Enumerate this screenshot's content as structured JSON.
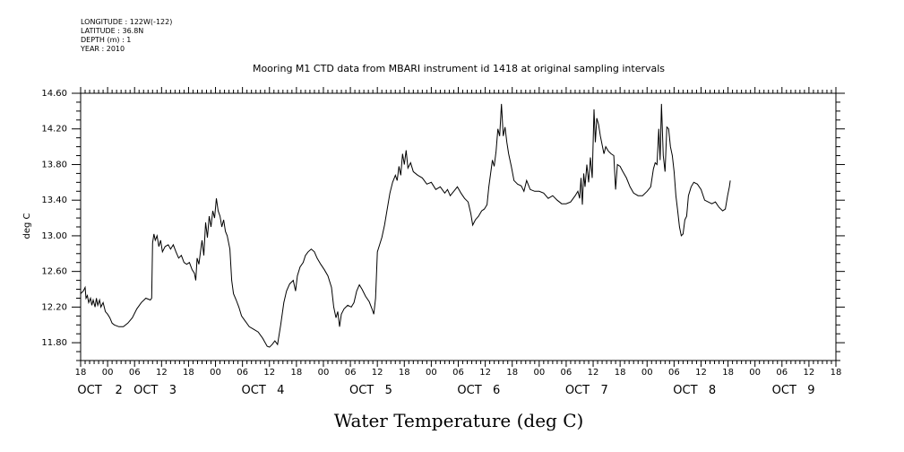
{
  "header": {
    "lines": [
      "LONGITUDE : 122W(-122)",
      "LATITUDE : 36.8N",
      "DEPTH (m) : 1",
      "YEAR : 2010"
    ]
  },
  "chart_data": {
    "type": "line",
    "title": "Mooring M1 CTD data from MBARI instrument id 1418 at original sampling intervals",
    "xlabel": "Water Temperature (deg C)",
    "ylabel": "deg C",
    "xlim": [
      -6,
      162
    ],
    "ylim": [
      11.6,
      14.6
    ],
    "yticks": [
      11.8,
      12.2,
      12.6,
      13.0,
      13.4,
      13.8,
      14.2,
      14.6
    ],
    "ytick_labels": [
      "11.80",
      "12.20",
      "12.60",
      "13.00",
      "13.40",
      "13.80",
      "14.20",
      "14.60"
    ],
    "x_hour_ticks": [
      -6,
      0,
      6,
      12,
      18,
      24,
      30,
      36,
      42,
      48,
      54,
      60,
      66,
      72,
      78,
      84,
      90,
      96,
      102,
      108,
      114,
      120,
      126,
      132,
      138,
      144,
      150,
      156,
      162
    ],
    "x_hour_labels": [
      "18",
      "00",
      "06",
      "12",
      "18",
      "00",
      "06",
      "12",
      "18",
      "00",
      "06",
      "12",
      "18",
      "00",
      "06",
      "12",
      "18",
      "00",
      "06",
      "12",
      "18",
      "00",
      "06",
      "12",
      "18",
      "00",
      "06",
      "12",
      "18"
    ],
    "x_day_labels": [
      {
        "x": -4,
        "text": "OCT"
      },
      {
        "x": 2.5,
        "text": "2"
      },
      {
        "x": 8.5,
        "text": "OCT"
      },
      {
        "x": 14.5,
        "text": "3"
      },
      {
        "x": 32.5,
        "text": "OCT"
      },
      {
        "x": 38.5,
        "text": "4"
      },
      {
        "x": 56.5,
        "text": "OCT"
      },
      {
        "x": 62.5,
        "text": "5"
      },
      {
        "x": 80.5,
        "text": "OCT"
      },
      {
        "x": 86.5,
        "text": "6"
      },
      {
        "x": 104.5,
        "text": "OCT"
      },
      {
        "x": 110.5,
        "text": "7"
      },
      {
        "x": 128.5,
        "text": "OCT"
      },
      {
        "x": 134.5,
        "text": "8"
      },
      {
        "x": 150.5,
        "text": "OCT"
      },
      {
        "x": 156.5,
        "text": "9"
      }
    ],
    "x_unit": "hours since 00Z OCT 2 2010",
    "series": [
      {
        "values": [
          [
            -6,
            12.35
          ],
          [
            -5.4,
            12.38
          ],
          [
            -5,
            12.42
          ],
          [
            -4.8,
            12.3
          ],
          [
            -4.5,
            12.33
          ],
          [
            -4.2,
            12.25
          ],
          [
            -3.8,
            12.3
          ],
          [
            -3.5,
            12.22
          ],
          [
            -3.2,
            12.28
          ],
          [
            -2.8,
            12.2
          ],
          [
            -2.5,
            12.3
          ],
          [
            -2.2,
            12.22
          ],
          [
            -1.8,
            12.28
          ],
          [
            -1.5,
            12.2
          ],
          [
            -1,
            12.25
          ],
          [
            -0.5,
            12.15
          ],
          [
            0,
            12.12
          ],
          [
            0.5,
            12.08
          ],
          [
            1,
            12.02
          ],
          [
            1.5,
            12.0
          ],
          [
            2.5,
            11.98
          ],
          [
            3.5,
            11.98
          ],
          [
            4.5,
            12.02
          ],
          [
            5.5,
            12.08
          ],
          [
            6.5,
            12.18
          ],
          [
            7.5,
            12.25
          ],
          [
            8.5,
            12.3
          ],
          [
            9.5,
            12.28
          ],
          [
            9.8,
            12.3
          ],
          [
            10,
            12.92
          ],
          [
            10.3,
            13.02
          ],
          [
            10.6,
            12.95
          ],
          [
            11,
            13.0
          ],
          [
            11.4,
            12.88
          ],
          [
            11.8,
            12.95
          ],
          [
            12.2,
            12.82
          ],
          [
            12.8,
            12.88
          ],
          [
            13.5,
            12.9
          ],
          [
            14,
            12.85
          ],
          [
            14.6,
            12.9
          ],
          [
            15.2,
            12.82
          ],
          [
            15.8,
            12.75
          ],
          [
            16.4,
            12.78
          ],
          [
            17,
            12.7
          ],
          [
            17.6,
            12.68
          ],
          [
            18.2,
            12.7
          ],
          [
            18.8,
            12.62
          ],
          [
            19.3,
            12.58
          ],
          [
            19.6,
            12.5
          ],
          [
            19.9,
            12.75
          ],
          [
            20.3,
            12.68
          ],
          [
            20.6,
            12.8
          ],
          [
            21,
            12.95
          ],
          [
            21.4,
            12.78
          ],
          [
            21.8,
            13.15
          ],
          [
            22.2,
            12.98
          ],
          [
            22.6,
            13.22
          ],
          [
            23,
            13.1
          ],
          [
            23.4,
            13.28
          ],
          [
            23.8,
            13.2
          ],
          [
            24.2,
            13.42
          ],
          [
            24.6,
            13.28
          ],
          [
            25,
            13.22
          ],
          [
            25.4,
            13.1
          ],
          [
            25.8,
            13.18
          ],
          [
            26.2,
            13.05
          ],
          [
            26.6,
            13.0
          ],
          [
            27.2,
            12.85
          ],
          [
            27.6,
            12.5
          ],
          [
            28,
            12.35
          ],
          [
            28.6,
            12.28
          ],
          [
            29.2,
            12.2
          ],
          [
            29.8,
            12.1
          ],
          [
            30.5,
            12.05
          ],
          [
            31.5,
            11.98
          ],
          [
            32.5,
            11.95
          ],
          [
            33.5,
            11.92
          ],
          [
            34.5,
            11.85
          ],
          [
            35.5,
            11.76
          ],
          [
            36,
            11.75
          ],
          [
            36.6,
            11.78
          ],
          [
            37.2,
            11.82
          ],
          [
            37.8,
            11.78
          ],
          [
            38.5,
            12.0
          ],
          [
            39.2,
            12.25
          ],
          [
            39.8,
            12.38
          ],
          [
            40.5,
            12.46
          ],
          [
            41.3,
            12.5
          ],
          [
            41.8,
            12.38
          ],
          [
            42.2,
            12.55
          ],
          [
            42.8,
            12.65
          ],
          [
            43.5,
            12.7
          ],
          [
            44,
            12.78
          ],
          [
            44.6,
            12.82
          ],
          [
            45.3,
            12.85
          ],
          [
            46,
            12.82
          ],
          [
            46.6,
            12.75
          ],
          [
            47.4,
            12.68
          ],
          [
            48.2,
            12.62
          ],
          [
            49,
            12.55
          ],
          [
            49.8,
            12.42
          ],
          [
            50.3,
            12.2
          ],
          [
            50.8,
            12.08
          ],
          [
            51.2,
            12.15
          ],
          [
            51.6,
            11.98
          ],
          [
            52,
            12.12
          ],
          [
            52.6,
            12.18
          ],
          [
            53.4,
            12.22
          ],
          [
            54.2,
            12.2
          ],
          [
            54.8,
            12.25
          ],
          [
            55.4,
            12.38
          ],
          [
            56,
            12.45
          ],
          [
            56.6,
            12.4
          ],
          [
            57.4,
            12.32
          ],
          [
            58.2,
            12.26
          ],
          [
            58.8,
            12.18
          ],
          [
            59.2,
            12.12
          ],
          [
            59.6,
            12.3
          ],
          [
            60,
            12.82
          ],
          [
            60.5,
            12.9
          ],
          [
            61,
            12.98
          ],
          [
            61.6,
            13.12
          ],
          [
            62.2,
            13.3
          ],
          [
            62.8,
            13.48
          ],
          [
            63.4,
            13.6
          ],
          [
            64,
            13.68
          ],
          [
            64.4,
            13.62
          ],
          [
            64.8,
            13.78
          ],
          [
            65.2,
            13.68
          ],
          [
            65.6,
            13.92
          ],
          [
            66,
            13.8
          ],
          [
            66.4,
            13.96
          ],
          [
            66.8,
            13.76
          ],
          [
            67.4,
            13.82
          ],
          [
            68,
            13.72
          ],
          [
            69,
            13.68
          ],
          [
            70,
            13.65
          ],
          [
            71,
            13.58
          ],
          [
            72,
            13.6
          ],
          [
            73,
            13.52
          ],
          [
            74,
            13.55
          ],
          [
            75,
            13.48
          ],
          [
            75.6,
            13.52
          ],
          [
            76.2,
            13.45
          ],
          [
            77,
            13.5
          ],
          [
            77.8,
            13.55
          ],
          [
            78.6,
            13.48
          ],
          [
            79.4,
            13.42
          ],
          [
            80.2,
            13.38
          ],
          [
            80.8,
            13.25
          ],
          [
            81.2,
            13.12
          ],
          [
            81.8,
            13.18
          ],
          [
            82.5,
            13.22
          ],
          [
            83.2,
            13.28
          ],
          [
            83.8,
            13.3
          ],
          [
            84.4,
            13.35
          ],
          [
            84.8,
            13.55
          ],
          [
            85.2,
            13.7
          ],
          [
            85.6,
            13.85
          ],
          [
            86,
            13.78
          ],
          [
            86.4,
            13.95
          ],
          [
            86.8,
            14.2
          ],
          [
            87.2,
            14.12
          ],
          [
            87.6,
            14.48
          ],
          [
            88,
            14.12
          ],
          [
            88.4,
            14.22
          ],
          [
            88.8,
            14.05
          ],
          [
            89.2,
            13.92
          ],
          [
            89.8,
            13.78
          ],
          [
            90.4,
            13.62
          ],
          [
            91.2,
            13.58
          ],
          [
            92,
            13.56
          ],
          [
            92.6,
            13.5
          ],
          [
            93.2,
            13.62
          ],
          [
            94,
            13.52
          ],
          [
            95,
            13.5
          ],
          [
            96,
            13.5
          ],
          [
            97,
            13.48
          ],
          [
            98,
            13.42
          ],
          [
            99,
            13.45
          ],
          [
            100,
            13.4
          ],
          [
            101,
            13.36
          ],
          [
            102,
            13.36
          ],
          [
            103,
            13.38
          ],
          [
            104,
            13.45
          ],
          [
            104.6,
            13.5
          ],
          [
            105,
            13.42
          ],
          [
            105.3,
            13.65
          ],
          [
            105.6,
            13.35
          ],
          [
            105.9,
            13.7
          ],
          [
            106.2,
            13.55
          ],
          [
            106.6,
            13.8
          ],
          [
            107,
            13.6
          ],
          [
            107.4,
            13.88
          ],
          [
            107.8,
            13.65
          ],
          [
            108.2,
            14.42
          ],
          [
            108.5,
            14.05
          ],
          [
            108.8,
            14.32
          ],
          [
            109.2,
            14.25
          ],
          [
            109.6,
            14.12
          ],
          [
            110,
            14.02
          ],
          [
            110.4,
            13.92
          ],
          [
            110.8,
            14.0
          ],
          [
            111.4,
            13.95
          ],
          [
            112,
            13.92
          ],
          [
            112.6,
            13.9
          ],
          [
            113,
            13.52
          ],
          [
            113.4,
            13.8
          ],
          [
            114,
            13.78
          ],
          [
            114.6,
            13.72
          ],
          [
            115.4,
            13.65
          ],
          [
            116.2,
            13.55
          ],
          [
            117,
            13.48
          ],
          [
            118,
            13.45
          ],
          [
            119,
            13.45
          ],
          [
            120,
            13.5
          ],
          [
            120.8,
            13.55
          ],
          [
            121.4,
            13.75
          ],
          [
            121.8,
            13.82
          ],
          [
            122.2,
            13.8
          ],
          [
            122.6,
            14.2
          ],
          [
            122.9,
            13.85
          ],
          [
            123.2,
            14.48
          ],
          [
            123.6,
            13.9
          ],
          [
            124,
            13.72
          ],
          [
            124.4,
            14.22
          ],
          [
            124.8,
            14.2
          ],
          [
            125.2,
            14.0
          ],
          [
            125.6,
            13.9
          ],
          [
            126,
            13.72
          ],
          [
            126.4,
            13.45
          ],
          [
            126.8,
            13.28
          ],
          [
            127.2,
            13.1
          ],
          [
            127.6,
            13.0
          ],
          [
            128,
            13.02
          ],
          [
            128.4,
            13.18
          ],
          [
            128.8,
            13.22
          ],
          [
            129.2,
            13.45
          ],
          [
            129.8,
            13.55
          ],
          [
            130.4,
            13.6
          ],
          [
            131.2,
            13.58
          ],
          [
            132,
            13.52
          ],
          [
            132.8,
            13.4
          ],
          [
            133.6,
            13.38
          ],
          [
            134.4,
            13.36
          ],
          [
            135.2,
            13.38
          ],
          [
            136,
            13.32
          ],
          [
            136.8,
            13.28
          ],
          [
            137.4,
            13.3
          ],
          [
            137.9,
            13.45
          ],
          [
            138.3,
            13.55
          ],
          [
            138.5,
            13.62
          ]
        ]
      }
    ]
  }
}
